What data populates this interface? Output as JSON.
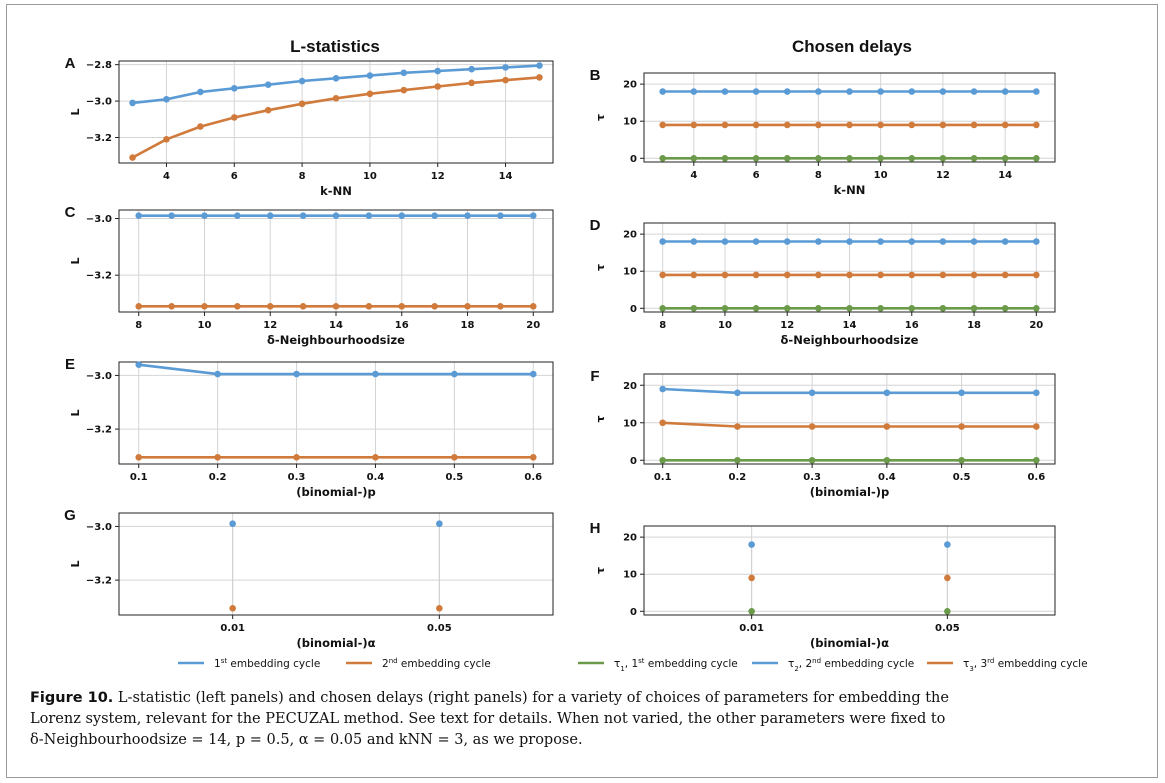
{
  "column_titles": {
    "left": "L-statistics",
    "right": "Chosen delays"
  },
  "legend_left": [
    {
      "label": "1st embedding cycle",
      "base": "1",
      "sup": "st",
      "rest": " embedding cycle",
      "color": "#5b9bd5"
    },
    {
      "label": "2nd embedding cycle",
      "base": "2",
      "sup": "nd",
      "rest": " embedding cycle",
      "color": "#d07a3c"
    }
  ],
  "legend_right": [
    {
      "label": "τ1, 1st embedding cycle",
      "tau": "τ",
      "sub": "1",
      "mid": ", 1",
      "sup": "st",
      "rest": " embedding cycle",
      "color": "#6a9a4a"
    },
    {
      "label": "τ2, 2nd embedding cycle",
      "tau": "τ",
      "sub": "2",
      "mid": ", 2",
      "sup": "nd",
      "rest": " embedding cycle",
      "color": "#5b9bd5"
    },
    {
      "label": "τ3, 3rd embedding cycle",
      "tau": "τ",
      "sub": "3",
      "mid": ", 3",
      "sup": "rd",
      "rest": " embedding cycle",
      "color": "#d07a3c"
    }
  ],
  "caption": {
    "label": "Figure 10.",
    "line1": "L-statistic (left panels) and chosen delays (right panels) for a variety of choices of parameters for embedding the",
    "line2": "Lorenz system, relevant for the PECUZAL method. See text for details. When not varied, the other parameters were fixed to",
    "line3": "δ-Neighbourhoodsize = 14, p = 0.5, α = 0.05 and kNN = 3, as we propose."
  },
  "chart_data": [
    {
      "panel": "A",
      "type": "line",
      "xlabel": "k-NN",
      "ylabel": "L",
      "x": [
        3,
        4,
        5,
        6,
        7,
        8,
        9,
        10,
        11,
        12,
        13,
        14,
        15
      ],
      "xticks": [
        4,
        6,
        8,
        10,
        12,
        14
      ],
      "xlim": [
        2.6,
        15.4
      ],
      "ylim": [
        -3.34,
        -2.78
      ],
      "yticks": [
        -2.8,
        -3.0,
        -3.2
      ],
      "ytick_labels": [
        "−2.8",
        "−3.0",
        "−3.2"
      ],
      "grid": true,
      "series": [
        {
          "color": "#5b9bd5",
          "values": [
            -3.01,
            -2.99,
            -2.95,
            -2.93,
            -2.91,
            -2.89,
            -2.875,
            -2.86,
            -2.845,
            -2.835,
            -2.825,
            -2.815,
            -2.805
          ]
        },
        {
          "color": "#d07a3c",
          "values": [
            -3.31,
            -3.21,
            -3.14,
            -3.09,
            -3.05,
            -3.015,
            -2.985,
            -2.96,
            -2.94,
            -2.92,
            -2.9,
            -2.885,
            -2.87
          ]
        }
      ]
    },
    {
      "panel": "B",
      "type": "line",
      "xlabel": "k-NN",
      "ylabel": "τ",
      "x": [
        3,
        4,
        5,
        6,
        7,
        8,
        9,
        10,
        11,
        12,
        13,
        14,
        15
      ],
      "xticks": [
        4,
        6,
        8,
        10,
        12,
        14
      ],
      "xlim": [
        2.4,
        15.6
      ],
      "ylim": [
        -1,
        23
      ],
      "yticks": [
        0,
        10,
        20
      ],
      "ytick_labels": [
        "0",
        "10",
        "20"
      ],
      "grid": true,
      "series": [
        {
          "color": "#5b9bd5",
          "values": [
            18,
            18,
            18,
            18,
            18,
            18,
            18,
            18,
            18,
            18,
            18,
            18,
            18
          ]
        },
        {
          "color": "#d07a3c",
          "values": [
            9,
            9,
            9,
            9,
            9,
            9,
            9,
            9,
            9,
            9,
            9,
            9,
            9
          ]
        },
        {
          "color": "#6a9a4a",
          "values": [
            0,
            0,
            0,
            0,
            0,
            0,
            0,
            0,
            0,
            0,
            0,
            0,
            0
          ]
        }
      ]
    },
    {
      "panel": "C",
      "type": "line",
      "xlabel": "δ-Neighbourhoodsize",
      "ylabel": "L",
      "x": [
        8,
        9,
        10,
        11,
        12,
        13,
        14,
        15,
        16,
        17,
        18,
        19,
        20
      ],
      "xticks": [
        8,
        10,
        12,
        14,
        16,
        18,
        20
      ],
      "xlim": [
        7.4,
        20.6
      ],
      "ylim": [
        -3.33,
        -2.97
      ],
      "yticks": [
        -3.0,
        -3.2
      ],
      "ytick_labels": [
        "−3.0",
        "−3.2"
      ],
      "grid": true,
      "series": [
        {
          "color": "#5b9bd5",
          "values": [
            -2.99,
            -2.99,
            -2.99,
            -2.99,
            -2.99,
            -2.99,
            -2.99,
            -2.99,
            -2.99,
            -2.99,
            -2.99,
            -2.99,
            -2.99
          ]
        },
        {
          "color": "#d07a3c",
          "values": [
            -3.31,
            -3.31,
            -3.31,
            -3.31,
            -3.31,
            -3.31,
            -3.31,
            -3.31,
            -3.31,
            -3.31,
            -3.31,
            -3.31,
            -3.31
          ]
        }
      ]
    },
    {
      "panel": "D",
      "type": "line",
      "xlabel": "δ-Neighbourhoodsize",
      "ylabel": "τ",
      "x": [
        8,
        9,
        10,
        11,
        12,
        13,
        14,
        15,
        16,
        17,
        18,
        19,
        20
      ],
      "xticks": [
        8,
        10,
        12,
        14,
        16,
        18,
        20
      ],
      "xlim": [
        7.4,
        20.6
      ],
      "ylim": [
        -1,
        23
      ],
      "yticks": [
        0,
        10,
        20
      ],
      "ytick_labels": [
        "0",
        "10",
        "20"
      ],
      "grid": true,
      "series": [
        {
          "color": "#5b9bd5",
          "values": [
            18,
            18,
            18,
            18,
            18,
            18,
            18,
            18,
            18,
            18,
            18,
            18,
            18
          ]
        },
        {
          "color": "#d07a3c",
          "values": [
            9,
            9,
            9,
            9,
            9,
            9,
            9,
            9,
            9,
            9,
            9,
            9,
            9
          ]
        },
        {
          "color": "#6a9a4a",
          "values": [
            0,
            0,
            0,
            0,
            0,
            0,
            0,
            0,
            0,
            0,
            0,
            0,
            0
          ]
        }
      ]
    },
    {
      "panel": "E",
      "type": "line",
      "xlabel": "(binomial-)p",
      "ylabel": "L",
      "x": [
        0.1,
        0.2,
        0.3,
        0.4,
        0.5,
        0.6
      ],
      "xticks": [
        0.1,
        0.2,
        0.3,
        0.4,
        0.5,
        0.6
      ],
      "xlim": [
        0.075,
        0.625
      ],
      "ylim": [
        -3.33,
        -2.95
      ],
      "yticks": [
        -3.0,
        -3.2
      ],
      "ytick_labels": [
        "−3.0",
        "−3.2"
      ],
      "grid": true,
      "series": [
        {
          "color": "#5b9bd5",
          "values": [
            -2.96,
            -2.995,
            -2.995,
            -2.995,
            -2.995,
            -2.995
          ]
        },
        {
          "color": "#d07a3c",
          "values": [
            -3.305,
            -3.305,
            -3.305,
            -3.305,
            -3.305,
            -3.305
          ]
        }
      ]
    },
    {
      "panel": "F",
      "type": "line",
      "xlabel": "(binomial-)p",
      "ylabel": "τ",
      "x": [
        0.1,
        0.2,
        0.3,
        0.4,
        0.5,
        0.6
      ],
      "xticks": [
        0.1,
        0.2,
        0.3,
        0.4,
        0.5,
        0.6
      ],
      "xlim": [
        0.075,
        0.625
      ],
      "ylim": [
        -1,
        23
      ],
      "yticks": [
        0,
        10,
        20
      ],
      "ytick_labels": [
        "0",
        "10",
        "20"
      ],
      "grid": true,
      "series": [
        {
          "color": "#5b9bd5",
          "values": [
            19,
            18,
            18,
            18,
            18,
            18
          ]
        },
        {
          "color": "#d07a3c",
          "values": [
            10,
            9,
            9,
            9,
            9,
            9
          ]
        },
        {
          "color": "#6a9a4a",
          "values": [
            0,
            0,
            0,
            0,
            0,
            0
          ]
        }
      ]
    },
    {
      "panel": "G",
      "type": "scatter",
      "xlabel": "(binomial-)α",
      "ylabel": "L",
      "x": [
        0.01,
        0.05
      ],
      "xticks": [
        0.01,
        0.05
      ],
      "xlim": [
        -0.012,
        0.072
      ],
      "ylim": [
        -3.33,
        -2.95
      ],
      "yticks": [
        -3.0,
        -3.2
      ],
      "ytick_labels": [
        "−3.0",
        "−3.2"
      ],
      "grid": true,
      "series": [
        {
          "color": "#5b9bd5",
          "values": [
            -2.99,
            -2.99
          ]
        },
        {
          "color": "#d07a3c",
          "values": [
            -3.305,
            -3.305
          ]
        }
      ]
    },
    {
      "panel": "H",
      "type": "scatter",
      "xlabel": "(binomial-)α",
      "ylabel": "τ",
      "x": [
        0.01,
        0.05
      ],
      "xticks": [
        0.01,
        0.05
      ],
      "xlim": [
        -0.012,
        0.072
      ],
      "ylim": [
        -1,
        23
      ],
      "yticks": [
        0,
        10,
        20
      ],
      "ytick_labels": [
        "0",
        "10",
        "20"
      ],
      "grid": true,
      "series": [
        {
          "color": "#5b9bd5",
          "values": [
            18,
            18
          ]
        },
        {
          "color": "#d07a3c",
          "values": [
            9,
            9
          ]
        },
        {
          "color": "#6a9a4a",
          "values": [
            0,
            0
          ]
        }
      ]
    }
  ]
}
